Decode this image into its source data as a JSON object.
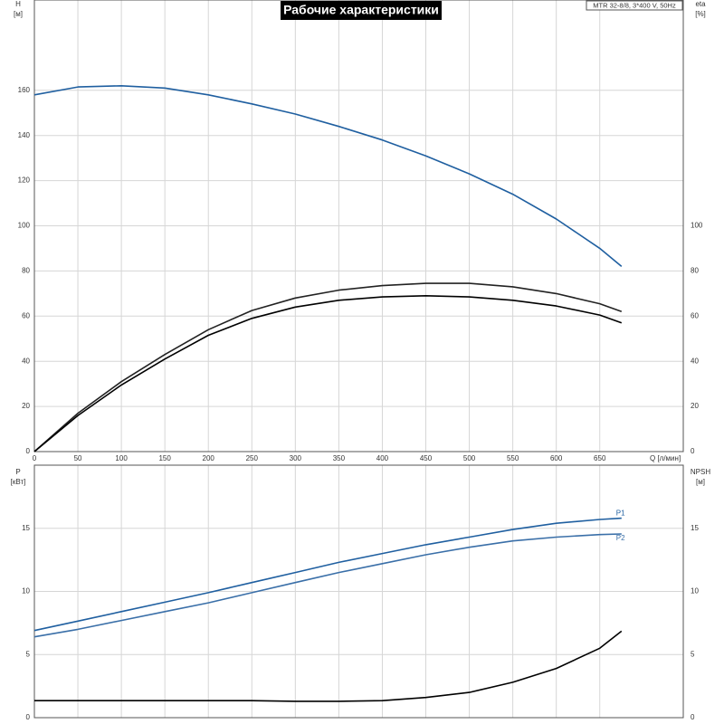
{
  "chart_data": [
    {
      "type": "line",
      "title": "Рабочие характеристики",
      "subtitle": "MTR 32-8/8, 3*400 V, 50Hz",
      "ylabel": [
        "H",
        "[м]"
      ],
      "y2label": [
        "eta",
        "[%]"
      ],
      "xlabel": "Q [л/мин]",
      "x": [
        0,
        50,
        100,
        150,
        200,
        250,
        300,
        350,
        400,
        450,
        500,
        550,
        600,
        650,
        675
      ],
      "xlim": [
        0,
        746
      ],
      "xticks": [
        0,
        50,
        100,
        150,
        200,
        250,
        300,
        350,
        400,
        450,
        500,
        550,
        600,
        650
      ],
      "ylim": [
        0,
        200
      ],
      "yticks": [
        0,
        20,
        40,
        60,
        80,
        100,
        120,
        140,
        160
      ],
      "y2lim": [
        0,
        200
      ],
      "y2ticks": [
        0,
        20,
        40,
        60,
        80,
        100
      ],
      "grid": true,
      "series": [
        {
          "color": "#1f5fa0",
          "values": [
            158,
            161.5,
            162,
            161,
            158,
            154,
            149.5,
            144,
            138,
            131,
            123,
            114,
            103,
            90,
            82
          ]
        },
        {
          "color": "#222222",
          "axis": "y2",
          "values": [
            0,
            17,
            31,
            43,
            54,
            62.5,
            68,
            71.5,
            73.5,
            74.5,
            74.5,
            73,
            70,
            65.5,
            62
          ]
        },
        {
          "color": "#000000",
          "axis": "y2",
          "values": [
            0,
            16,
            29.5,
            41,
            51.5,
            59,
            64,
            67,
            68.5,
            69,
            68.5,
            67,
            64.5,
            60.5,
            57
          ]
        }
      ]
    },
    {
      "type": "line",
      "ylabel": [
        "P",
        "[кВт]"
      ],
      "y2label": [
        "NPSH",
        "[м]"
      ],
      "x": [
        0,
        50,
        100,
        150,
        200,
        250,
        300,
        350,
        400,
        450,
        500,
        550,
        600,
        650,
        675
      ],
      "xlim": [
        0,
        746
      ],
      "ylim": [
        0,
        20
      ],
      "yticks": [
        0,
        5,
        10,
        15
      ],
      "y2lim": [
        0,
        20
      ],
      "y2ticks": [
        0,
        5,
        10,
        15
      ],
      "grid": true,
      "series": [
        {
          "name": "P1",
          "color": "#1f5fa0",
          "values": [
            6.9,
            7.65,
            8.4,
            9.15,
            9.9,
            10.7,
            11.5,
            12.3,
            13.0,
            13.7,
            14.3,
            14.9,
            15.4,
            15.7,
            15.8
          ]
        },
        {
          "name": "P2",
          "color": "#3a6fa8",
          "values": [
            6.4,
            7.0,
            7.7,
            8.4,
            9.1,
            9.9,
            10.7,
            11.5,
            12.2,
            12.9,
            13.5,
            14.0,
            14.3,
            14.5,
            14.55
          ]
        },
        {
          "color": "#000000",
          "axis": "y2",
          "values": [
            1.35,
            1.35,
            1.35,
            1.35,
            1.35,
            1.35,
            1.3,
            1.3,
            1.35,
            1.6,
            2.0,
            2.8,
            3.9,
            5.5,
            6.85
          ]
        }
      ]
    }
  ]
}
